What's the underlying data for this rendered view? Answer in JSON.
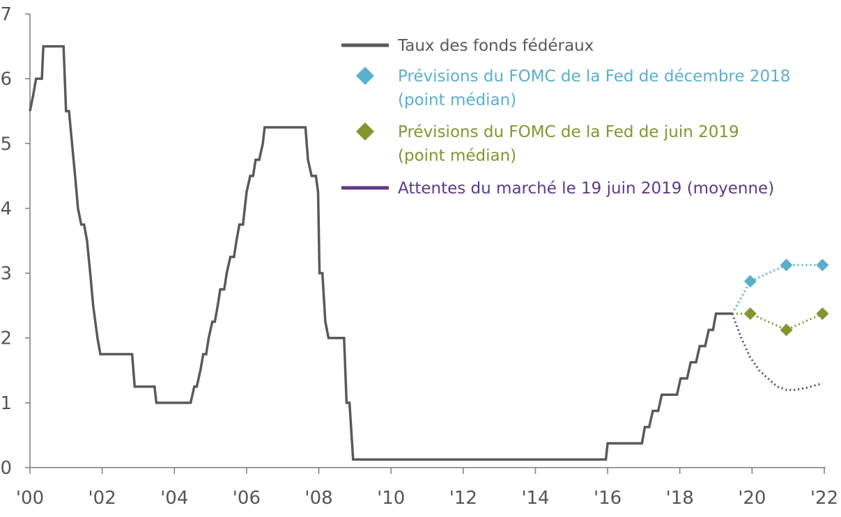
{
  "chart_data": {
    "type": "line",
    "title": "",
    "xlabel": "",
    "ylabel": "",
    "xlim": [
      2000,
      2022
    ],
    "ylim": [
      0,
      7
    ],
    "grid": false,
    "legend_position": "top-right",
    "yticks": [
      "0",
      "1",
      "2",
      "3",
      "4",
      "5",
      "6",
      "7"
    ],
    "xticks": [
      "'00",
      "'02",
      "'04",
      "'06",
      "'08",
      "'10",
      "'12",
      "'14",
      "'16",
      "'18",
      "'20",
      "'22"
    ],
    "colors": {
      "fed_funds": "#58595b",
      "dec2018": "#5aafcc",
      "jun2019": "#849430",
      "market": "#5c3a87"
    },
    "legend": [
      {
        "key": "fed_funds",
        "marker": "line",
        "lines": [
          "Taux des fonds fédéraux"
        ]
      },
      {
        "key": "dec2018",
        "marker": "diamond",
        "lines": [
          "Prévisions du FOMC de la Fed de décembre 2018",
          "(point médian)"
        ]
      },
      {
        "key": "jun2019",
        "marker": "diamond",
        "lines": [
          "Prévisions du FOMC de la Fed de juin 2019",
          "(point médian)"
        ]
      },
      {
        "key": "market",
        "marker": "line",
        "lines": [
          "Attentes du marché le 19 juin 2019 (moyenne)"
        ]
      }
    ],
    "series": [
      {
        "name": "Taux des fonds fédéraux",
        "key": "fed_funds",
        "style": "step",
        "points": [
          [
            2000.0,
            5.5
          ],
          [
            2000.09,
            5.75
          ],
          [
            2000.17,
            6.0
          ],
          [
            2000.33,
            6.0
          ],
          [
            2000.37,
            6.5
          ],
          [
            2000.93,
            6.5
          ],
          [
            2001.0,
            5.5
          ],
          [
            2001.08,
            5.5
          ],
          [
            2001.25,
            4.5
          ],
          [
            2001.33,
            4.0
          ],
          [
            2001.42,
            3.75
          ],
          [
            2001.5,
            3.75
          ],
          [
            2001.58,
            3.5
          ],
          [
            2001.67,
            3.0
          ],
          [
            2001.75,
            2.5
          ],
          [
            2001.87,
            2.0
          ],
          [
            2001.95,
            1.75
          ],
          [
            2002.83,
            1.75
          ],
          [
            2002.9,
            1.25
          ],
          [
            2003.45,
            1.25
          ],
          [
            2003.5,
            1.0
          ],
          [
            2004.45,
            1.0
          ],
          [
            2004.55,
            1.25
          ],
          [
            2004.62,
            1.25
          ],
          [
            2004.72,
            1.5
          ],
          [
            2004.8,
            1.75
          ],
          [
            2004.88,
            1.75
          ],
          [
            2004.95,
            2.0
          ],
          [
            2005.05,
            2.25
          ],
          [
            2005.12,
            2.25
          ],
          [
            2005.2,
            2.5
          ],
          [
            2005.27,
            2.75
          ],
          [
            2005.38,
            2.75
          ],
          [
            2005.45,
            3.0
          ],
          [
            2005.55,
            3.25
          ],
          [
            2005.65,
            3.25
          ],
          [
            2005.72,
            3.5
          ],
          [
            2005.8,
            3.75
          ],
          [
            2005.9,
            3.75
          ],
          [
            2006.0,
            4.25
          ],
          [
            2006.1,
            4.5
          ],
          [
            2006.18,
            4.5
          ],
          [
            2006.25,
            4.75
          ],
          [
            2006.35,
            4.75
          ],
          [
            2006.45,
            5.0
          ],
          [
            2006.5,
            5.25
          ],
          [
            2007.63,
            5.25
          ],
          [
            2007.7,
            4.75
          ],
          [
            2007.8,
            4.5
          ],
          [
            2007.92,
            4.5
          ],
          [
            2007.98,
            4.25
          ],
          [
            2008.02,
            3.0
          ],
          [
            2008.1,
            3.0
          ],
          [
            2008.18,
            2.25
          ],
          [
            2008.27,
            2.0
          ],
          [
            2008.7,
            2.0
          ],
          [
            2008.77,
            1.0
          ],
          [
            2008.85,
            1.0
          ],
          [
            2008.95,
            0.125
          ],
          [
            2015.95,
            0.125
          ],
          [
            2016.0,
            0.375
          ],
          [
            2016.95,
            0.375
          ],
          [
            2017.03,
            0.625
          ],
          [
            2017.15,
            0.625
          ],
          [
            2017.25,
            0.875
          ],
          [
            2017.4,
            0.875
          ],
          [
            2017.5,
            1.125
          ],
          [
            2017.92,
            1.125
          ],
          [
            2018.02,
            1.375
          ],
          [
            2018.2,
            1.375
          ],
          [
            2018.3,
            1.625
          ],
          [
            2018.45,
            1.625
          ],
          [
            2018.55,
            1.875
          ],
          [
            2018.7,
            1.875
          ],
          [
            2018.8,
            2.125
          ],
          [
            2018.92,
            2.125
          ],
          [
            2019.0,
            2.375
          ],
          [
            2019.45,
            2.375
          ]
        ]
      },
      {
        "name": "Prévisions du FOMC de la Fed de décembre 2018 (point médian)",
        "key": "dec2018",
        "style": "dotted-diamond",
        "start": [
          2019.45,
          2.375
        ],
        "points": [
          [
            2019.95,
            2.875
          ],
          [
            2020.95,
            3.125
          ],
          [
            2021.95,
            3.125
          ]
        ]
      },
      {
        "name": "Prévisions du FOMC de la Fed de juin 2019 (point médian)",
        "key": "jun2019",
        "style": "dotted-diamond",
        "start": [
          2019.45,
          2.375
        ],
        "points": [
          [
            2019.95,
            2.375
          ],
          [
            2020.95,
            2.125
          ],
          [
            2021.95,
            2.375
          ]
        ]
      },
      {
        "name": "Attentes du marché le 19 juin 2019 (moyenne)",
        "key": "market",
        "style": "dotted-curve",
        "points": [
          [
            2019.45,
            2.375
          ],
          [
            2019.7,
            2.0
          ],
          [
            2019.95,
            1.7
          ],
          [
            2020.2,
            1.5
          ],
          [
            2020.45,
            1.37
          ],
          [
            2020.7,
            1.25
          ],
          [
            2020.95,
            1.2
          ],
          [
            2021.2,
            1.2
          ],
          [
            2021.5,
            1.23
          ],
          [
            2021.95,
            1.3
          ]
        ]
      }
    ]
  }
}
